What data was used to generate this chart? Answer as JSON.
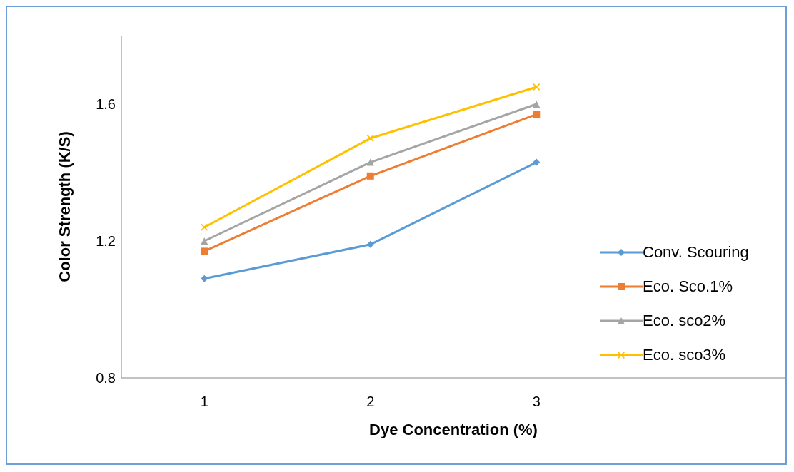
{
  "chart_data": {
    "type": "line",
    "xlabel": "Dye Concentration (%)",
    "ylabel": "Color Strength (K/S)",
    "categories": [
      "1",
      "2",
      "3",
      null
    ],
    "ylim": [
      0.8,
      1.8
    ],
    "yticks": [
      {
        "value": 0.8,
        "label": "0.8"
      },
      {
        "value": 1.2,
        "label": "1.2"
      },
      {
        "value": 1.6,
        "label": "1.6"
      }
    ],
    "grid": false,
    "legend": "right",
    "series": [
      {
        "name": "Conv. Scouring",
        "color": "#5b9bd5",
        "marker": "diamond",
        "values": [
          1.09,
          1.19,
          1.43,
          null
        ]
      },
      {
        "name": "Eco. Sco.1%",
        "color": "#ed7d31",
        "marker": "square",
        "values": [
          1.17,
          1.39,
          1.57,
          null
        ]
      },
      {
        "name": "Eco. sco2%",
        "color": "#a5a5a5",
        "marker": "triangle",
        "values": [
          1.2,
          1.43,
          1.6,
          null
        ]
      },
      {
        "name": "Eco. sco3%",
        "color": "#ffc000",
        "marker": "cross",
        "values": [
          1.24,
          1.5,
          1.65,
          null
        ]
      }
    ]
  }
}
